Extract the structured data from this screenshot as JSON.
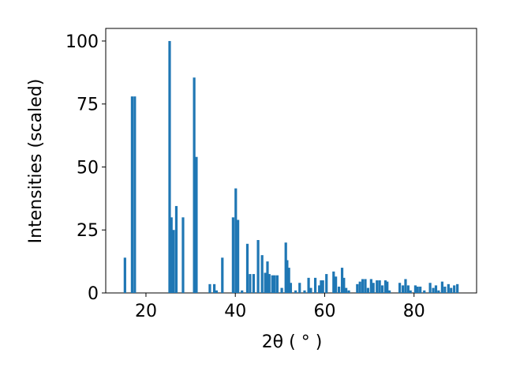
{
  "chart_data": {
    "type": "bar",
    "xlabel": "2θ ( ° )",
    "ylabel": "Intensities (scaled)",
    "color": "#1f77b4",
    "x": [
      15.3,
      16.9,
      17.5,
      25.3,
      25.7,
      26.2,
      26.8,
      28.3,
      30.8,
      31.3,
      34.3,
      35.3,
      35.8,
      37.1,
      39.5,
      40.1,
      40.6,
      41.5,
      42.7,
      43.3,
      44.1,
      45.1,
      46.0,
      46.7,
      47.2,
      47.6,
      48.3,
      48.8,
      49.4,
      50.4,
      51.3,
      51.6,
      52.0,
      52.4,
      53.5,
      54.4,
      55.5,
      56.4,
      56.9,
      57.9,
      58.8,
      59.2,
      59.6,
      60.4,
      62.0,
      62.5,
      63.2,
      63.9,
      64.3,
      64.8,
      65.4,
      67.3,
      67.9,
      68.5,
      69.1,
      69.7,
      70.4,
      70.9,
      71.7,
      72.3,
      72.9,
      73.6,
      74.0,
      74.5,
      76.8,
      77.5,
      78.1,
      78.7,
      79.2,
      80.3,
      80.8,
      81.4,
      82.3,
      83.6,
      84.3,
      84.9,
      85.5,
      86.3,
      86.9,
      87.7,
      88.3,
      89.0,
      89.7
    ],
    "values": [
      14,
      78,
      78,
      100,
      30,
      25,
      34.5,
      30,
      85.5,
      54,
      3.5,
      3.5,
      1,
      14,
      30,
      41.5,
      29,
      1,
      19.5,
      7.5,
      7.5,
      21,
      15,
      8,
      12.5,
      7.5,
      7,
      7,
      7,
      2,
      20,
      13,
      10,
      4,
      1,
      4,
      1,
      6,
      2,
      6,
      3,
      5,
      5,
      7.5,
      8.5,
      6.5,
      2.5,
      10,
      6,
      2,
      1,
      3.5,
      4.5,
      5.5,
      5.5,
      2,
      5.5,
      4,
      5,
      5,
      3,
      5,
      4.5,
      1,
      4,
      3,
      5.5,
      3,
      1,
      3,
      2.5,
      2.5,
      1,
      4,
      2,
      3,
      1,
      4.5,
      2.5,
      3.5,
      2,
      3,
      3.5
    ],
    "xlim": [
      11,
      94
    ],
    "xticks": [
      20,
      40,
      60,
      80
    ],
    "ylim": [
      0,
      105
    ],
    "yticks": [
      0,
      25,
      50,
      75,
      100
    ]
  }
}
